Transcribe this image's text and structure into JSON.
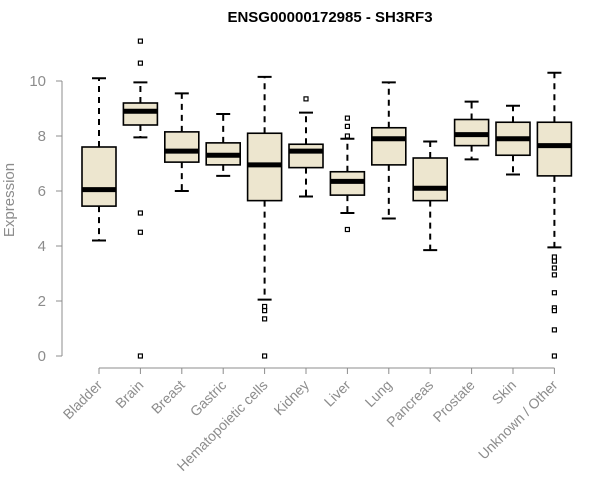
{
  "chart_data": {
    "type": "boxplot",
    "title": "ENSG00000172985 - SH3RF3",
    "xlabel": "",
    "ylabel": "Expression",
    "ylim": [
      0,
      10.5
    ],
    "yticks": [
      0,
      2,
      4,
      6,
      8,
      10
    ],
    "ytick_labels": [
      "0",
      "2",
      "4",
      "6",
      "8",
      "10"
    ],
    "grid": false,
    "colors": {
      "box_fill": "#ede6cf",
      "box_stroke": "#000000",
      "axis": "#8c8c8c",
      "text": "#8c8c8c",
      "title": "#000000"
    },
    "categories": [
      "Bladder",
      "Brain",
      "Breast",
      "Gastric",
      "Hematopoietic cells",
      "Kidney",
      "Liver",
      "Lung",
      "Pancreas",
      "Prostate",
      "Skin",
      "Unknown / Other"
    ],
    "boxes": [
      {
        "category": "Bladder",
        "whisker_low": 4.2,
        "q1": 5.45,
        "median": 6.05,
        "q3": 7.6,
        "whisker_high": 10.1,
        "outliers": []
      },
      {
        "category": "Brain",
        "whisker_low": 7.95,
        "q1": 8.4,
        "median": 8.9,
        "q3": 9.2,
        "whisker_high": 9.95,
        "outliers": [
          11.45,
          10.65,
          5.2,
          4.5,
          0.0
        ]
      },
      {
        "category": "Breast",
        "whisker_low": 6.0,
        "q1": 7.05,
        "median": 7.45,
        "q3": 8.15,
        "whisker_high": 9.55,
        "outliers": []
      },
      {
        "category": "Gastric",
        "whisker_low": 6.55,
        "q1": 6.95,
        "median": 7.3,
        "q3": 7.75,
        "whisker_high": 8.8,
        "outliers": []
      },
      {
        "category": "Hematopoietic cells",
        "whisker_low": 2.05,
        "q1": 5.65,
        "median": 6.95,
        "q3": 8.1,
        "whisker_high": 10.15,
        "outliers": [
          1.8,
          1.65,
          1.35,
          0.0
        ]
      },
      {
        "category": "Kidney",
        "whisker_low": 5.8,
        "q1": 6.85,
        "median": 7.45,
        "q3": 7.7,
        "whisker_high": 8.85,
        "outliers": [
          9.35
        ]
      },
      {
        "category": "Liver",
        "whisker_low": 5.2,
        "q1": 5.85,
        "median": 6.35,
        "q3": 6.7,
        "whisker_high": 7.9,
        "outliers": [
          8.65,
          8.35,
          8.0,
          4.6
        ]
      },
      {
        "category": "Lung",
        "whisker_low": 5.0,
        "q1": 6.95,
        "median": 7.9,
        "q3": 8.3,
        "whisker_high": 9.95,
        "outliers": []
      },
      {
        "category": "Pancreas",
        "whisker_low": 3.85,
        "q1": 5.65,
        "median": 6.1,
        "q3": 7.2,
        "whisker_high": 7.8,
        "outliers": []
      },
      {
        "category": "Prostate",
        "whisker_low": 7.15,
        "q1": 7.65,
        "median": 8.05,
        "q3": 8.6,
        "whisker_high": 9.25,
        "outliers": []
      },
      {
        "category": "Skin",
        "whisker_low": 6.6,
        "q1": 7.3,
        "median": 7.9,
        "q3": 8.5,
        "whisker_high": 9.1,
        "outliers": []
      },
      {
        "category": "Unknown / Other",
        "whisker_low": 3.95,
        "q1": 6.55,
        "median": 7.65,
        "q3": 8.5,
        "whisker_high": 10.3,
        "outliers": [
          3.6,
          3.45,
          3.2,
          2.95,
          2.3,
          1.75,
          1.65,
          0.95,
          0.0
        ]
      }
    ]
  }
}
